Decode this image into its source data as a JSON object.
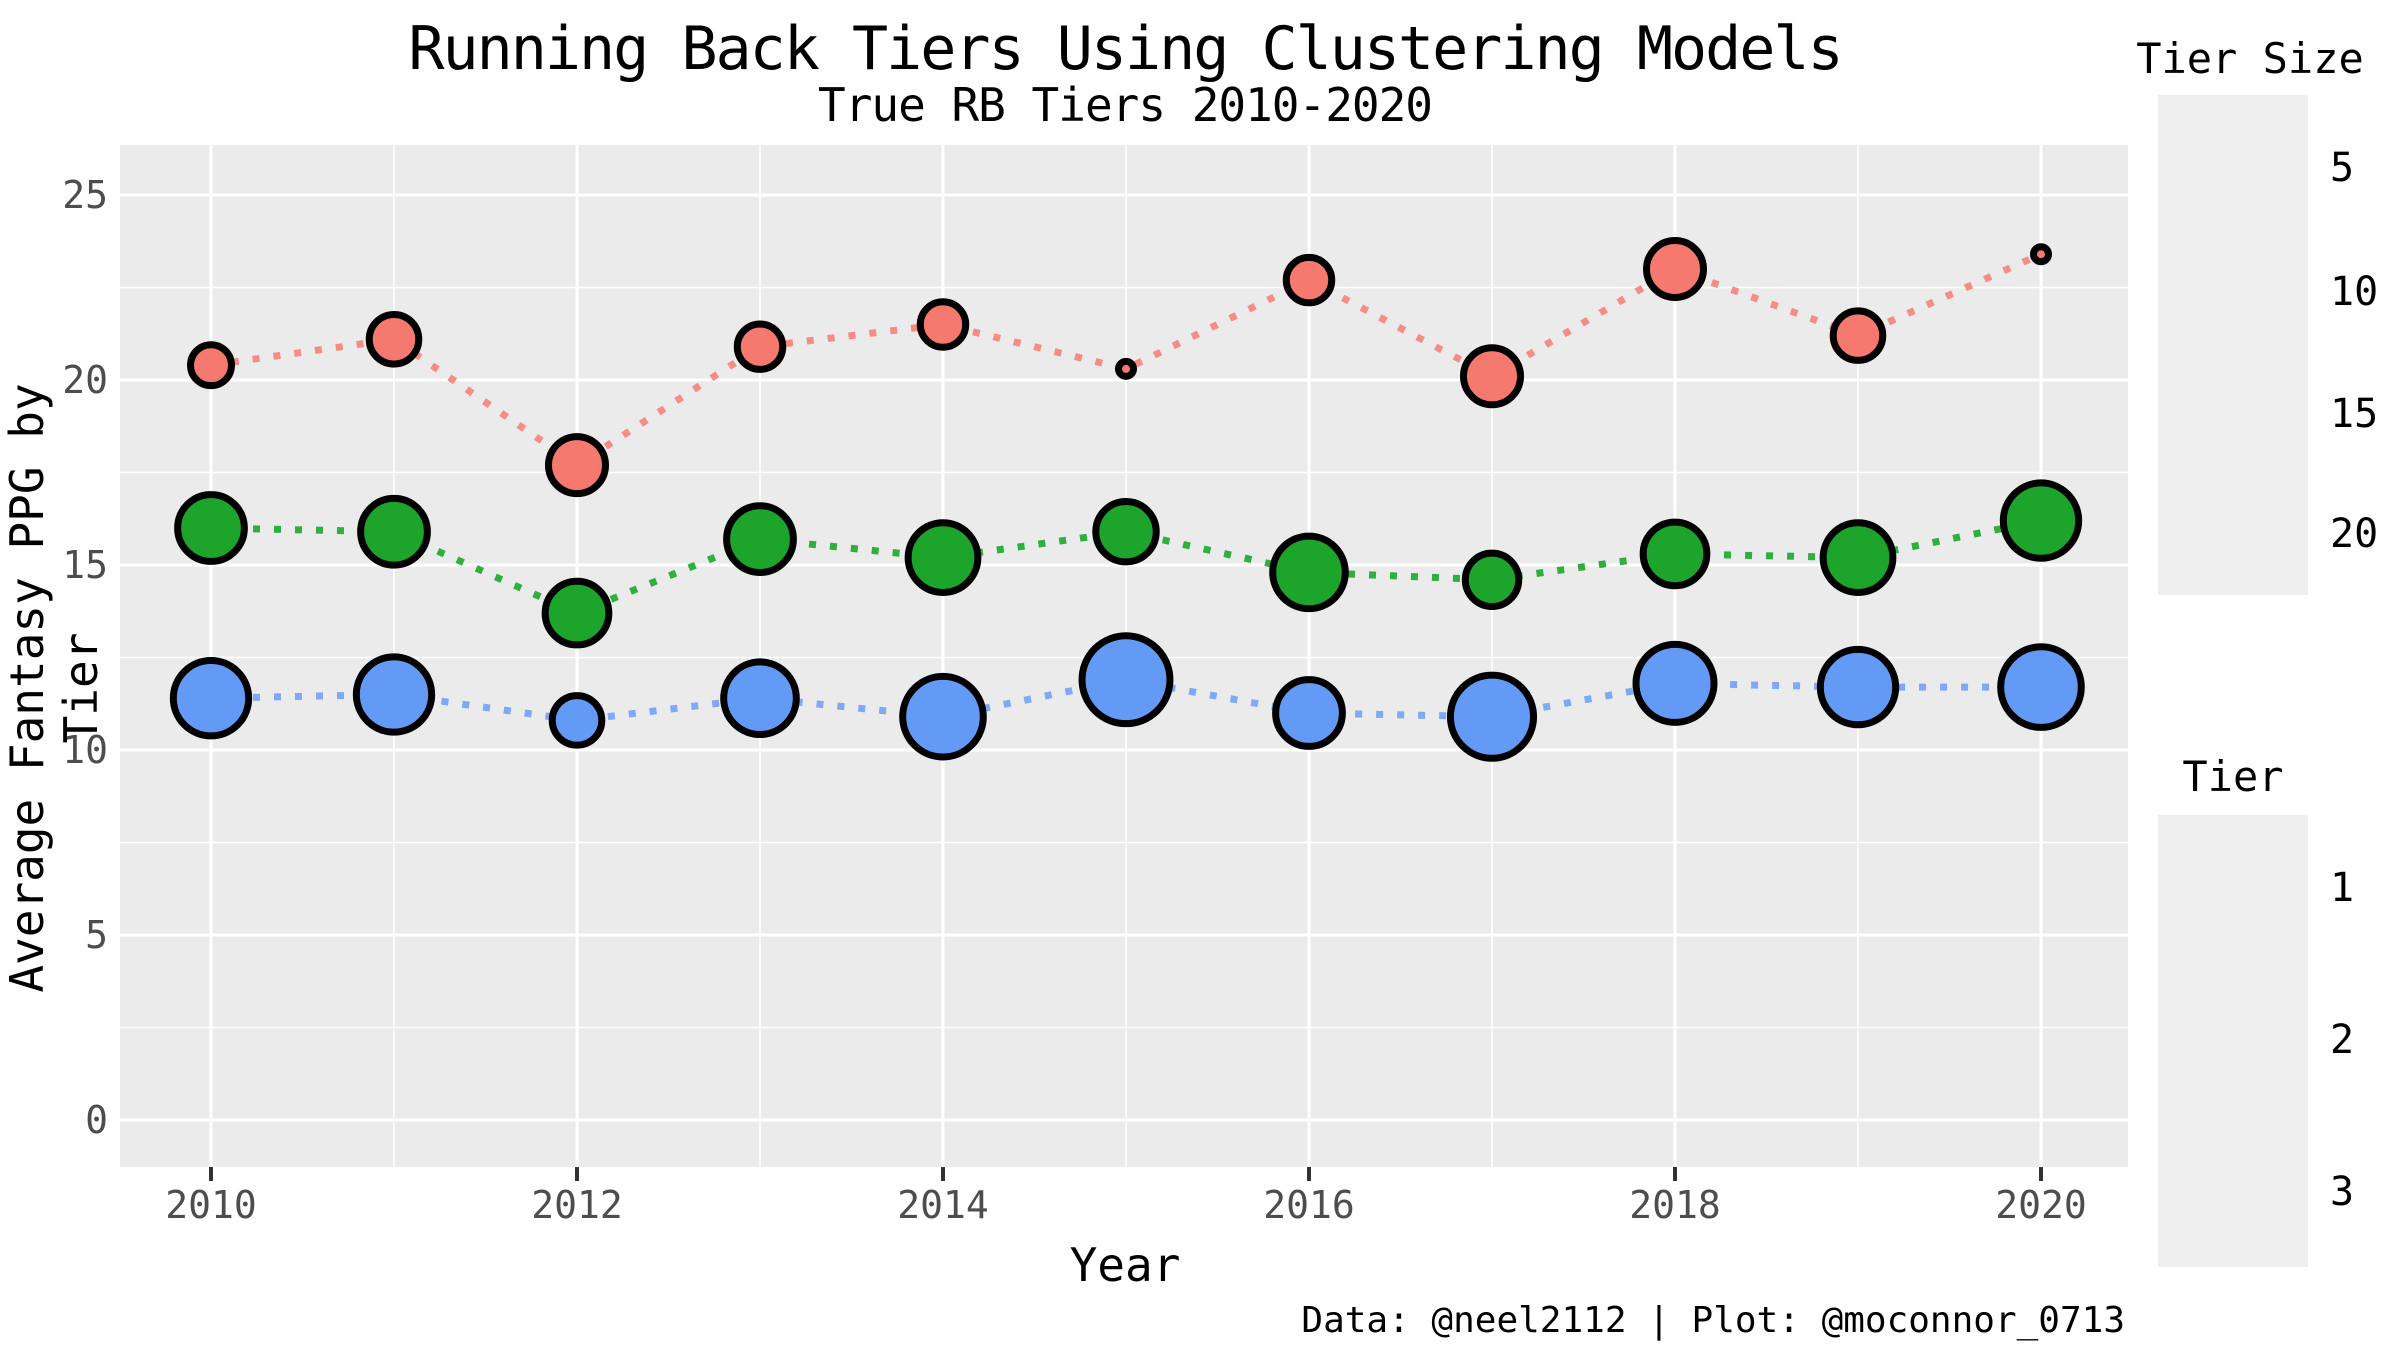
{
  "chart": {
    "title": "Running Back Tiers Using Clustering Models",
    "subtitle": "True RB Tiers 2010-2020",
    "caption": "Data: @neel2112 | Plot: @moconnor_0713",
    "x_axis": {
      "label": "Year",
      "tick_labels": [
        "2010",
        "2012",
        "2014",
        "2016",
        "2018",
        "2020"
      ]
    },
    "y_axis": {
      "label": "Average Fantasy PPG by Tier",
      "tick_labels": [
        "0",
        "5",
        "10",
        "15",
        "20",
        "25"
      ]
    }
  },
  "chart_data": {
    "type": "scatter",
    "title": "Running Back Tiers Using Clustering Models",
    "subtitle": "True RB Tiers 2010-2020",
    "xlabel": "Year",
    "ylabel": "Average Fantasy PPG by Tier",
    "x": [
      2010,
      2011,
      2012,
      2013,
      2014,
      2015,
      2016,
      2017,
      2018,
      2019,
      2020
    ],
    "x_major_ticks": [
      2010,
      2012,
      2014,
      2016,
      2018,
      2020
    ],
    "x_minor_ticks": [
      2011,
      2013,
      2015,
      2017,
      2019
    ],
    "y_major_ticks": [
      0,
      5,
      10,
      15,
      20,
      25
    ],
    "y_minor_ticks": [
      2.5,
      7.5,
      12.5,
      17.5,
      22.5
    ],
    "xlim": [
      2009.5,
      2020.45
    ],
    "ylim": [
      -1.3,
      26.4
    ],
    "grid": true,
    "legend_position": "right",
    "line_style": "dotted",
    "series": [
      {
        "name": "Tier 1",
        "tier": 1,
        "color": "#F5796E",
        "line_color": "#F68D84",
        "ppg": [
          20.4,
          21.1,
          17.7,
          20.9,
          21.5,
          20.3,
          22.7,
          20.1,
          23.0,
          21.2,
          23.4
        ],
        "tier_size": [
          5,
          7,
          9,
          6,
          6,
          1,
          6,
          9,
          9,
          7,
          1
        ]
      },
      {
        "name": "Tier 2",
        "tier": 2,
        "color": "#1CA42B",
        "line_color": "#2FAF3E",
        "ppg": [
          16.0,
          15.9,
          13.7,
          15.7,
          15.2,
          15.9,
          14.8,
          14.6,
          15.3,
          15.2,
          16.2
        ],
        "tier_size": [
          12,
          12,
          11,
          12,
          13,
          10,
          14,
          8,
          11,
          13,
          15
        ]
      },
      {
        "name": "Tier 3",
        "tier": 3,
        "color": "#639AF5",
        "line_color": "#7FA8F7",
        "ppg": [
          11.4,
          11.5,
          10.8,
          11.4,
          10.9,
          11.9,
          11.0,
          10.9,
          11.8,
          11.7,
          11.7
        ],
        "tier_size": [
          15,
          15,
          7,
          14,
          17,
          20,
          12,
          18,
          16,
          15,
          17
        ]
      }
    ]
  },
  "size_legend": {
    "title": "Tier Size",
    "entries": [
      {
        "label": "5",
        "value": 5
      },
      {
        "label": "10",
        "value": 10
      },
      {
        "label": "15",
        "value": 15
      },
      {
        "label": "20",
        "value": 20
      }
    ]
  },
  "tier_legend": {
    "title": "Tier",
    "entries": [
      {
        "label": "1",
        "color": "#F5796E",
        "line_color": "#F68D84"
      },
      {
        "label": "2",
        "color": "#1CA42B",
        "line_color": "#2FAF3E"
      },
      {
        "label": "3",
        "color": "#639AF5",
        "line_color": "#7FA8F7"
      }
    ]
  },
  "colors": {
    "panel_background": "#EBEBEB",
    "legend_key_background": "#EFEFEF",
    "gridline": "#FFFFFF",
    "tick_text": "#4d4d4d",
    "point_outline": "#000000",
    "outer_background": "#FFFFFF"
  }
}
